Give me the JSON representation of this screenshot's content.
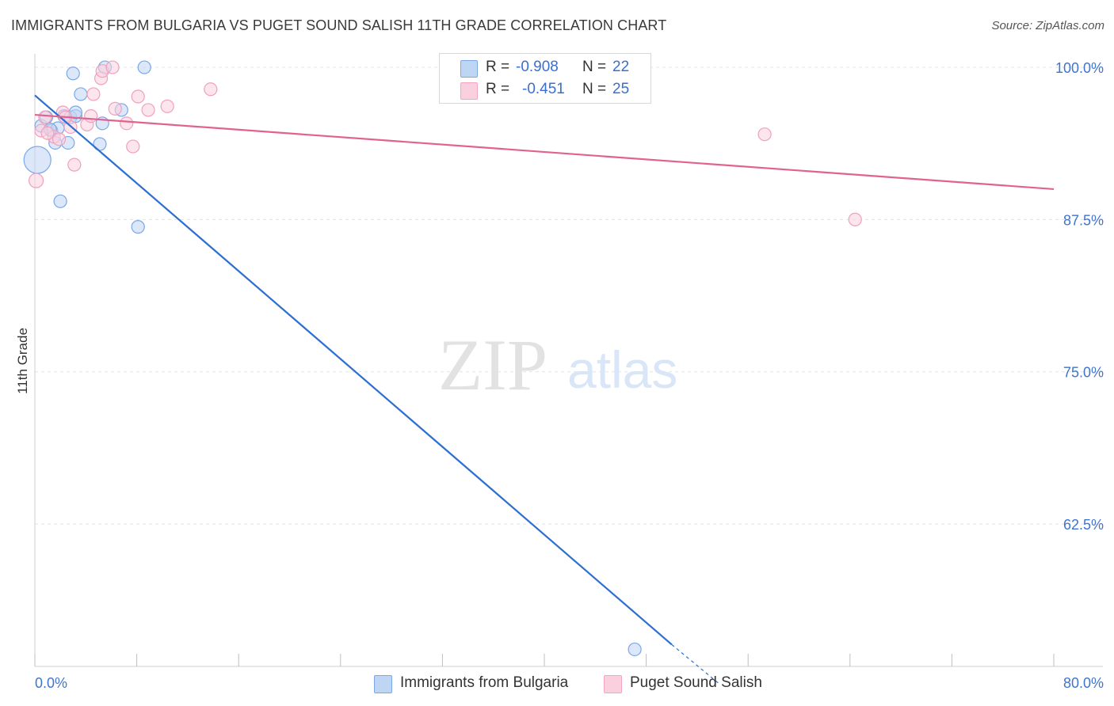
{
  "chart_data": {
    "type": "scatter",
    "title": "IMMIGRANTS FROM BULGARIA VS PUGET SOUND SALISH 11TH GRADE CORRELATION CHART",
    "source": "Source: ZipAtlas.com",
    "ylabel": "11th Grade",
    "xlabel": "",
    "xlim": [
      0,
      80
    ],
    "ylim": [
      50.8,
      101.5
    ],
    "x_tick_labels": [
      "0.0%",
      "80.0%"
    ],
    "y_ticks": [
      100.0,
      87.5,
      75.0,
      62.5
    ],
    "y_tick_labels": [
      "100.0%",
      "87.5%",
      "75.0%",
      "62.5%"
    ],
    "watermark": {
      "zip": "ZIP",
      "atlas": "atlas"
    },
    "legend": [
      {
        "r_label": "R =",
        "r_value": "-0.908",
        "n_label": "N =",
        "n_value": "22"
      },
      {
        "r_label": "R =",
        "r_value": "-0.451",
        "n_label": "N =",
        "n_value": "25"
      }
    ],
    "series": [
      {
        "name": "Immigrants from Bulgaria",
        "color": "#7aa8e6",
        "line_color": "#2c6fd1",
        "points": [
          {
            "x": 0.2,
            "y": 92.4,
            "size": 34
          },
          {
            "x": 0.5,
            "y": 95.2,
            "size": 16
          },
          {
            "x": 0.9,
            "y": 95.9,
            "size": 16
          },
          {
            "x": 1.3,
            "y": 94.8,
            "size": 16
          },
          {
            "x": 1.6,
            "y": 93.8,
            "size": 16
          },
          {
            "x": 1.8,
            "y": 95.0,
            "size": 16
          },
          {
            "x": 2.0,
            "y": 89.0,
            "size": 16
          },
          {
            "x": 2.3,
            "y": 96.0,
            "size": 16
          },
          {
            "x": 2.6,
            "y": 93.8,
            "size": 16
          },
          {
            "x": 2.8,
            "y": 95.9,
            "size": 16
          },
          {
            "x": 3.0,
            "y": 99.5,
            "size": 16
          },
          {
            "x": 3.2,
            "y": 96.0,
            "size": 16
          },
          {
            "x": 3.2,
            "y": 96.3,
            "size": 16
          },
          {
            "x": 3.6,
            "y": 97.8,
            "size": 16
          },
          {
            "x": 5.1,
            "y": 93.7,
            "size": 16
          },
          {
            "x": 5.3,
            "y": 95.4,
            "size": 16
          },
          {
            "x": 5.5,
            "y": 100.0,
            "size": 16
          },
          {
            "x": 6.8,
            "y": 96.5,
            "size": 16
          },
          {
            "x": 8.1,
            "y": 86.9,
            "size": 16
          },
          {
            "x": 8.6,
            "y": 100.0,
            "size": 16
          },
          {
            "x": 47.1,
            "y": 52.2,
            "size": 16
          },
          {
            "x": 1.2,
            "y": 94.9,
            "size": 16
          }
        ],
        "trend": {
          "x_start": 0,
          "y_start": 97.7,
          "x_solid_end": 50.0,
          "y_solid_end": 52.6,
          "x_dash_end": 53.7,
          "y_dash_end": 49.4
        }
      },
      {
        "name": "Puget Sound Salish",
        "color": "#f3a6c0",
        "line_color": "#e0628f",
        "points": [
          {
            "x": 0.1,
            "y": 90.7,
            "size": 18
          },
          {
            "x": 0.5,
            "y": 94.8,
            "size": 16
          },
          {
            "x": 0.8,
            "y": 95.9,
            "size": 16
          },
          {
            "x": 1.5,
            "y": 94.3,
            "size": 16
          },
          {
            "x": 1.9,
            "y": 94.1,
            "size": 16
          },
          {
            "x": 2.2,
            "y": 96.3,
            "size": 16
          },
          {
            "x": 2.8,
            "y": 95.1,
            "size": 16
          },
          {
            "x": 3.1,
            "y": 92.0,
            "size": 16
          },
          {
            "x": 4.1,
            "y": 95.3,
            "size": 16
          },
          {
            "x": 4.4,
            "y": 96.0,
            "size": 16
          },
          {
            "x": 4.6,
            "y": 97.8,
            "size": 16
          },
          {
            "x": 5.2,
            "y": 99.1,
            "size": 16
          },
          {
            "x": 5.3,
            "y": 99.7,
            "size": 16
          },
          {
            "x": 6.1,
            "y": 100.0,
            "size": 16
          },
          {
            "x": 6.3,
            "y": 96.6,
            "size": 16
          },
          {
            "x": 7.2,
            "y": 95.4,
            "size": 16
          },
          {
            "x": 7.7,
            "y": 93.5,
            "size": 16
          },
          {
            "x": 8.1,
            "y": 97.6,
            "size": 16
          },
          {
            "x": 8.9,
            "y": 96.5,
            "size": 16
          },
          {
            "x": 10.4,
            "y": 96.8,
            "size": 16
          },
          {
            "x": 13.8,
            "y": 98.2,
            "size": 16
          },
          {
            "x": 57.3,
            "y": 94.5,
            "size": 16
          },
          {
            "x": 64.4,
            "y": 87.5,
            "size": 16
          },
          {
            "x": 2.4,
            "y": 95.9,
            "size": 16
          },
          {
            "x": 1.0,
            "y": 94.6,
            "size": 16
          }
        ],
        "trend": {
          "x_start": 0,
          "y_start": 96.1,
          "x_end": 80,
          "y_end": 90.0
        }
      }
    ]
  }
}
